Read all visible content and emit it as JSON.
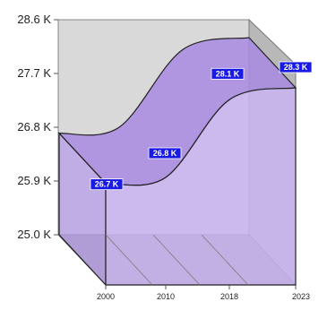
{
  "chart_data": {
    "type": "area",
    "style": "3d",
    "x": [
      "2000",
      "2010",
      "2018",
      "2023"
    ],
    "values": [
      26700,
      26800,
      28100,
      28300
    ],
    "data_labels": [
      "26.7 K",
      "26.8 K",
      "28.1 K",
      "28.3 K"
    ],
    "x_tick_labels": [
      "2000",
      "2010",
      "2018",
      "2023"
    ],
    "y_tick_labels": [
      "25.0 K",
      "25.9 K",
      "26.8 K",
      "27.7 K",
      "28.6 K"
    ],
    "y_ticks": [
      25000,
      25900,
      26800,
      27700,
      28600
    ],
    "ylim": [
      25000,
      28600
    ],
    "grid": false,
    "legend": "none",
    "colors": {
      "area_fill": "#c9b3f0",
      "area_top": "#a88ae0",
      "area_side": "#b89de8",
      "outline": "#222222",
      "wall": "#d9d9d9",
      "wall_side": "#b8b8b8",
      "floor": "#9a9a9a",
      "label_bg": "#1a1ae6"
    }
  }
}
